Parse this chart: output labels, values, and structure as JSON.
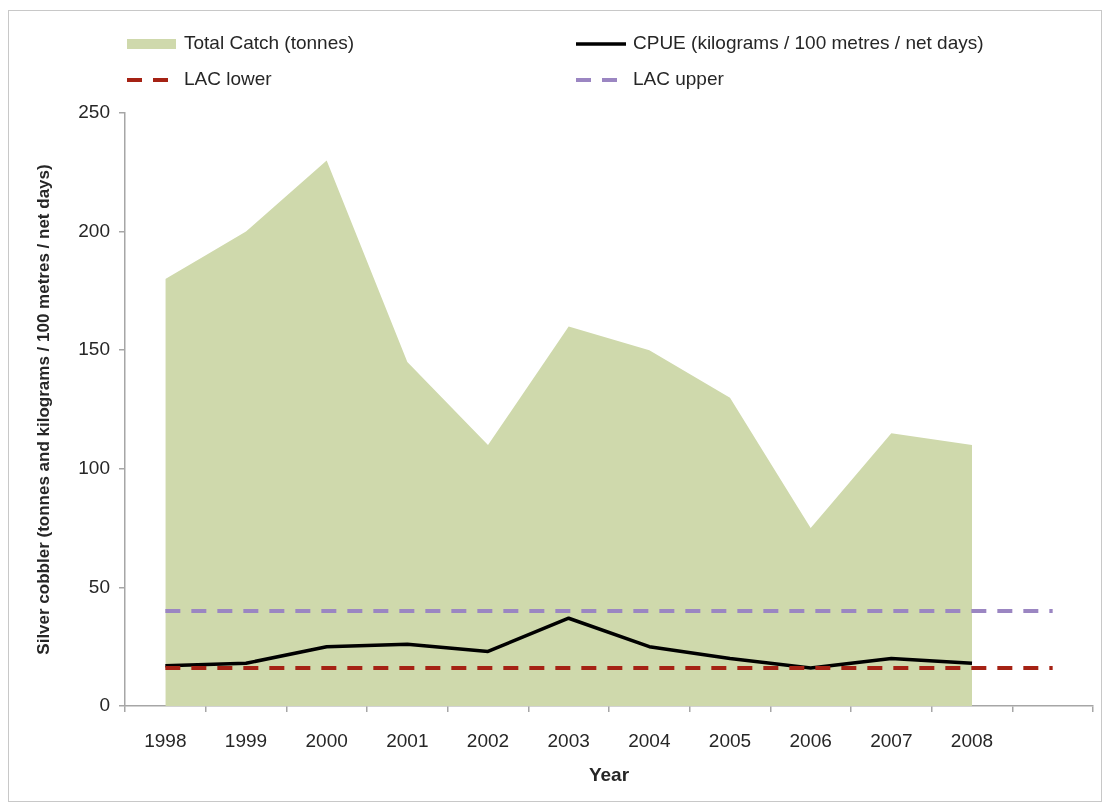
{
  "chart_data": {
    "type": "area",
    "xlabel": "Year",
    "ylabel": "Silver cobbler (tonnes and kilograms / 100 metres / net days)",
    "categories": [
      "1998",
      "1999",
      "2000",
      "2001",
      "2002",
      "2003",
      "2004",
      "2005",
      "2006",
      "2007",
      "2008",
      null
    ],
    "ylim": [
      0,
      250
    ],
    "yticks": [
      0,
      50,
      100,
      150,
      200,
      250
    ],
    "grid": false,
    "legend": "top",
    "marker": "none",
    "series": [
      {
        "name": "Total Catch (tonnes)",
        "type": "area",
        "color": "#cfd9ac",
        "values": [
          180,
          200,
          230,
          145,
          110,
          160,
          150,
          130,
          75,
          115,
          110,
          null
        ]
      },
      {
        "name": "CPUE (kilograms / 100 metres / net days)",
        "type": "line",
        "color": "#000000",
        "line_style": "solid",
        "values": [
          17,
          18,
          25,
          26,
          23,
          37,
          25,
          20,
          16,
          20,
          18,
          null
        ]
      },
      {
        "name": "LAC lower",
        "type": "line",
        "color": "#a52214",
        "line_style": "dashed",
        "values": [
          16,
          16,
          16,
          16,
          16,
          16,
          16,
          16,
          16,
          16,
          16,
          16
        ]
      },
      {
        "name": "LAC upper",
        "type": "line",
        "color": "#9b86c2",
        "line_style": "dashed",
        "values": [
          40,
          40,
          40,
          40,
          40,
          40,
          40,
          40,
          40,
          40,
          40,
          40
        ]
      }
    ]
  }
}
